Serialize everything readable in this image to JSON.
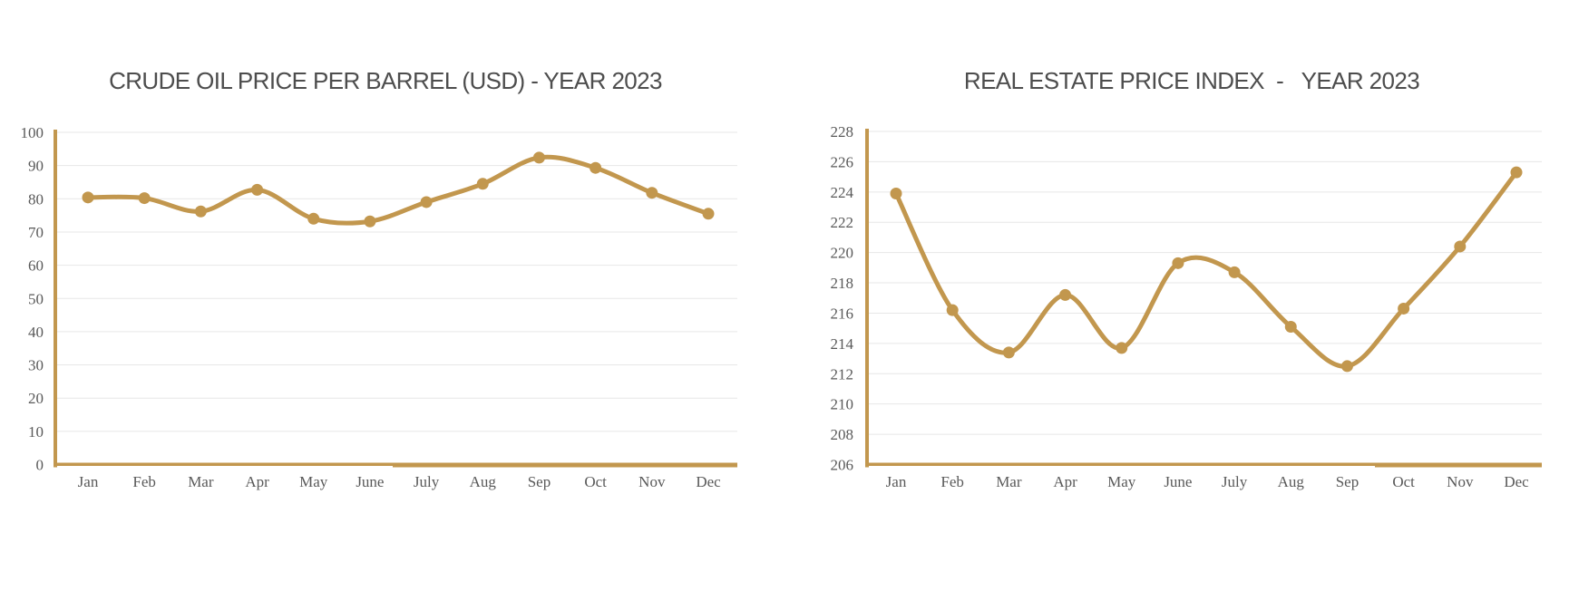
{
  "colors": {
    "line": "#C2974E",
    "marker": "#C2974E",
    "axis_line": "#C2974E",
    "grid_line": "#E7E7E7",
    "tick_text": "#595959",
    "title_text": "#4D4D4D",
    "background": "#FFFFFF"
  },
  "chart_data": [
    {
      "type": "line",
      "title": "CRUDE OIL PRICE PER BARREL (USD) - YEAR 2023",
      "categories": [
        "Jan",
        "Feb",
        "Mar",
        "Apr",
        "May",
        "June",
        "July",
        "Aug",
        "Sep",
        "Oct",
        "Nov",
        "Dec"
      ],
      "series": [
        {
          "values": [
            80.4,
            80.2,
            76.2,
            82.7,
            74.0,
            73.2,
            79.0,
            84.5,
            92.4,
            89.3,
            81.8,
            75.5
          ]
        }
      ],
      "ylim": [
        0,
        100
      ],
      "ytick_step": 10,
      "ytick_labels": [
        "0",
        "10",
        "20",
        "30",
        "40",
        "50",
        "60",
        "70",
        "80",
        "90",
        "100"
      ],
      "grid": true,
      "legend": "none",
      "smooth": true,
      "marker_style": "circle"
    },
    {
      "type": "line",
      "title": "REAL ESTATE PRICE INDEX  -   YEAR 2023",
      "categories": [
        "Jan",
        "Feb",
        "Mar",
        "Apr",
        "May",
        "June",
        "July",
        "Aug",
        "Sep",
        "Oct",
        "Nov",
        "Dec"
      ],
      "series": [
        {
          "values": [
            223.9,
            216.2,
            213.4,
            217.2,
            213.7,
            219.3,
            218.7,
            215.1,
            212.5,
            216.3,
            220.4,
            225.3
          ]
        }
      ],
      "ylim": [
        206,
        228
      ],
      "ytick_step": 2,
      "ytick_labels": [
        "206",
        "208",
        "210",
        "212",
        "214",
        "216",
        "218",
        "220",
        "222",
        "224",
        "226",
        "228"
      ],
      "grid": true,
      "legend": "none",
      "smooth": true,
      "marker_style": "circle"
    }
  ]
}
